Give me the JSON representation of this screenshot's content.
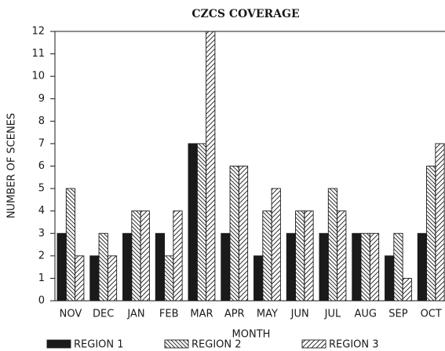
{
  "chart_data": {
    "type": "bar",
    "title": "CZCS COVERAGE",
    "x_label": "MONTH",
    "y_label": "NUMBER OF SCENES",
    "categories": [
      "NOV",
      "DEC",
      "JAN",
      "FEB",
      "MAR",
      "APR",
      "MAY",
      "JUN",
      "JUL",
      "AUG",
      "SEP",
      "OCT"
    ],
    "series": [
      {
        "name": "REGION 1",
        "color": "#1a1a1a",
        "values": [
          3,
          2,
          3,
          3,
          7,
          3,
          2,
          3,
          3,
          3,
          2,
          3
        ]
      },
      {
        "name": "REGION 2",
        "color": "#1a1a1a",
        "values": [
          5,
          3,
          4,
          2,
          7,
          6,
          4,
          4,
          5,
          3,
          3,
          6
        ]
      },
      {
        "name": "REGION 3",
        "color": "#1a1a1a",
        "values": [
          2,
          2,
          4,
          4,
          12,
          6,
          5,
          4,
          4,
          3,
          1,
          7
        ]
      }
    ],
    "ylim": [
      0,
      12
    ],
    "yticks": [
      0,
      1,
      2,
      3,
      4,
      5,
      6,
      7,
      8,
      9,
      10,
      11,
      12
    ]
  }
}
